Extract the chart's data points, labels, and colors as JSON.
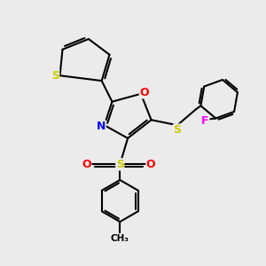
{
  "bg_color": "#ebebeb",
  "bond_color": "#000000",
  "bond_width": 1.5,
  "atom_colors": {
    "S": "#cccc00",
    "O": "#ff0000",
    "N": "#0000ff",
    "F": "#ff00ff"
  },
  "fig_width": 3.0,
  "fig_height": 3.0
}
